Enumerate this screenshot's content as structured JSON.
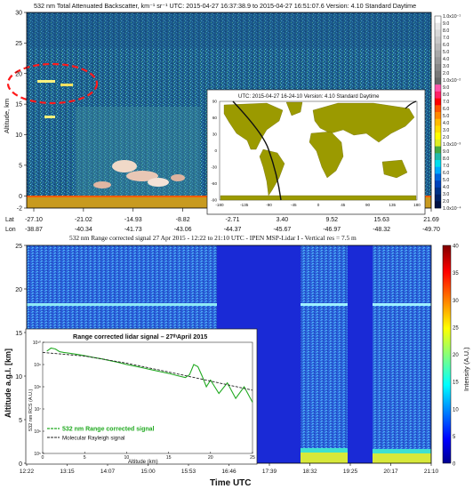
{
  "chart_data": [
    {
      "type": "heatmap",
      "title": "532 nm Total Attenuated Backscatter, km⁻¹ sr⁻¹   UTC:  2015-04-27 16:37:38.9  to  2015-04-27 16:51:07.6   Version: 4.10  Standard  Daytime",
      "ylabel": "Altitude, km",
      "ylim": [
        -2,
        30
      ],
      "yticks": [
        "-2",
        "0",
        "5",
        "10",
        "15",
        "20",
        "25",
        "30"
      ],
      "lat_label": "Lat",
      "lon_label": "Lon",
      "lat_ticks": [
        "-27.10",
        "-21.02",
        "-14.93",
        "-8.82",
        "-2.71",
        "3.40",
        "9.52",
        "15.63",
        "21.69"
      ],
      "lon_ticks": [
        "-38.87",
        "-40.34",
        "-41.73",
        "-43.06",
        "-44.37",
        "-45.67",
        "-46.97",
        "-48.32",
        "-49.70"
      ],
      "colorbar_ticks": [
        "1.0x10⁻¹",
        "9.0",
        "8.0",
        "7.0",
        "6.0",
        "5.0",
        "4.0",
        "3.0",
        "2.0",
        "1.0x10⁻²",
        "9.0",
        "8.0",
        "7.0",
        "6.0",
        "5.0",
        "4.0",
        "3.0",
        "2.0",
        "1.0x10⁻³",
        "9.0",
        "8.0",
        "7.0",
        "6.0",
        "5.0",
        "4.0",
        "3.0",
        "2.0",
        "1.0x10⁻⁴"
      ],
      "colorbar_colors": [
        "#ffffff",
        "#e8e8e8",
        "#d8d8d8",
        "#c8c8c8",
        "#b8b8b8",
        "#a8a8a8",
        "#989898",
        "#888888",
        "#787878",
        "#686868",
        "#ff55aa",
        "#ff2266",
        "#ff0000",
        "#ff5500",
        "#ff8800",
        "#ffbb00",
        "#ffdd00",
        "#ffff00",
        "#ddee22",
        "#44aa44",
        "#22bbaa",
        "#00ddee",
        "#00aaff",
        "#0066dd",
        "#0044bb",
        "#003388",
        "#002266",
        "#001144"
      ],
      "highlight": "dashed red ellipse around aerosol layer near 20 km"
    },
    {
      "type": "map",
      "title": "UTC: 2015-04-27  16-24-10     Version: 4.10  Standard     Daytime",
      "xticks": [
        "-180",
        "-135",
        "-90",
        "-45",
        "0",
        "45",
        "90",
        "135",
        "180"
      ],
      "yticks": [
        "90",
        "60",
        "30",
        "0",
        "-30",
        "-60",
        "-90"
      ],
      "land_color": "#9b9a00",
      "track_color": "#000000"
    },
    {
      "type": "heatmap",
      "title": "532 nm Range corrected signal  27 Apr 2015 - 12:22 to 21:10 UTC - IPEN MSP-Lidar I   - Vertical res = 7.5 m",
      "xlabel": "Time UTC",
      "ylabel": "Altitude a.g.l. [km]",
      "ylim": [
        0,
        25
      ],
      "yticks": [
        "0",
        "5",
        "10",
        "15",
        "20",
        "25"
      ],
      "xticks": [
        "12:22",
        "13:15",
        "14:07",
        "15:00",
        "15:53",
        "16:46",
        "17:39",
        "18:32",
        "19:25",
        "20:17",
        "21:10"
      ],
      "colorbar_label": "Intensity (A.U.)",
      "colorbar_ticks": [
        "0",
        "5",
        "10",
        "15",
        "20",
        "25",
        "30",
        "35",
        "40"
      ],
      "clim": [
        0,
        40
      ],
      "layer_altitude_km": 18.5,
      "data_gaps_utc": [
        [
          "16:00",
          "18:08"
        ],
        [
          "19:15",
          "19:48"
        ]
      ]
    },
    {
      "type": "line",
      "title": "Range corrected lidar signal – 27ᵗʰApril 2015",
      "xlabel": "Altitude (km)",
      "ylabel": "532 nm RCS (A.U.)",
      "xlim": [
        0,
        25
      ],
      "xticks": [
        "0",
        "5",
        "10",
        "15",
        "20",
        "25"
      ],
      "yticks": [
        "10⁵",
        "10⁶",
        "10⁷",
        "10⁸",
        "10⁹",
        "10¹⁰"
      ],
      "ylog": true,
      "series": [
        {
          "name": "532 nm Range corrected signal",
          "color": "#22aa22",
          "x": [
            0.5,
            1,
            1.5,
            2,
            2.5,
            3,
            4,
            5,
            6,
            7,
            8,
            9,
            10,
            11,
            12,
            13,
            14,
            15,
            16,
            17,
            17.5,
            18,
            18.5,
            19,
            19.5,
            20,
            21,
            22,
            23,
            24,
            25
          ],
          "y": [
            4000000000.0,
            5500000000.0,
            5000000000.0,
            3800000000.0,
            3500000000.0,
            3300000000.0,
            2900000000.0,
            2500000000.0,
            2100000000.0,
            1800000000.0,
            1500000000.0,
            1250000000.0,
            1000000000.0,
            850000000.0,
            700000000.0,
            580000000.0,
            480000000.0,
            400000000.0,
            320000000.0,
            260000000.0,
            350000000.0,
            1000000000.0,
            800000000.0,
            300000000.0,
            100000000.0,
            200000000.0,
            50000000.0,
            150000000.0,
            30000000.0,
            100000000.0,
            20000000.0
          ]
        },
        {
          "name": "Molecular Rayleigh signal",
          "color": "#222222",
          "x": [
            0,
            5,
            10,
            15,
            20,
            25
          ],
          "y": [
            3500000000.0,
            2400000000.0,
            1150000000.0,
            460000000.0,
            180000000.0,
            70000000.0
          ]
        }
      ]
    }
  ]
}
